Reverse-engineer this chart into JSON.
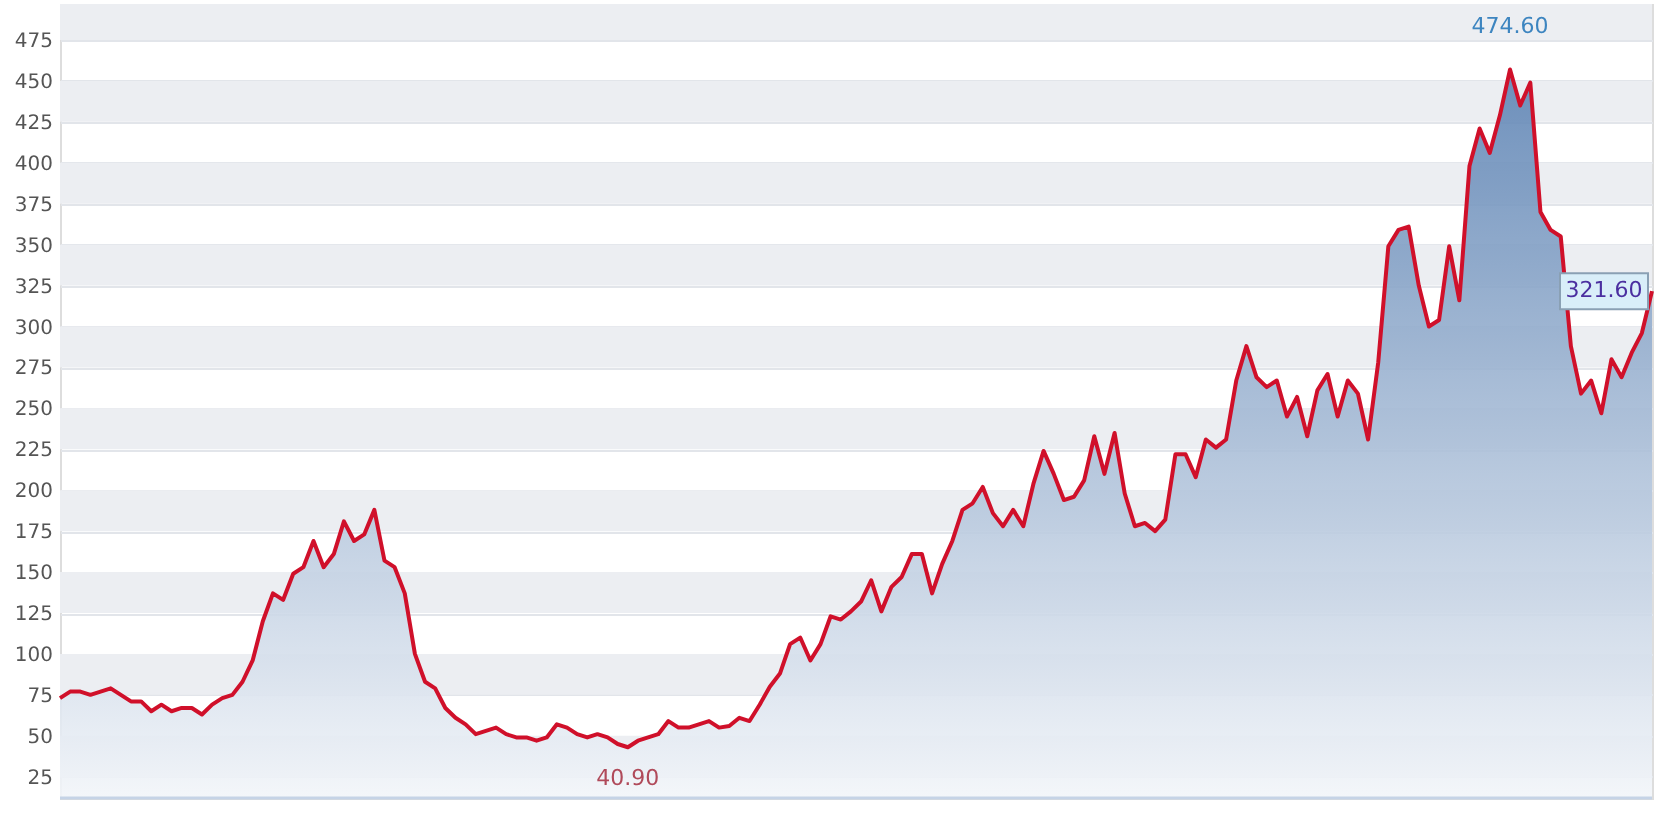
{
  "chart_data": {
    "type": "area",
    "categories": [
      null,
      null,
      null,
      null,
      null,
      null,
      null,
      null,
      null,
      null,
      null,
      null,
      null,
      null,
      null,
      null,
      null,
      null,
      null,
      null,
      null,
      null,
      null,
      null,
      null,
      null,
      null,
      null,
      null,
      null,
      null,
      null,
      null,
      null,
      null,
      null,
      null,
      null,
      null,
      null,
      null,
      null,
      null,
      null,
      null,
      null,
      null,
      null,
      null,
      null,
      null,
      null,
      null,
      null,
      null,
      null,
      null,
      null,
      null,
      null,
      null,
      null,
      null,
      null,
      null,
      null,
      null,
      null,
      null,
      null,
      null,
      null,
      null,
      null,
      null,
      null,
      null,
      null,
      null,
      null,
      null,
      null,
      null,
      null,
      null,
      null,
      null,
      null,
      null,
      null,
      null,
      null,
      null,
      null,
      null,
      null,
      null,
      null,
      null,
      null,
      null,
      null,
      null,
      null,
      null,
      null,
      null,
      null,
      null,
      null,
      null,
      null,
      null,
      null,
      null,
      null,
      null,
      null,
      null,
      null,
      null,
      null,
      null,
      null,
      null,
      null,
      null,
      null,
      null,
      null,
      null,
      null,
      null,
      null,
      null,
      null,
      null,
      null,
      null,
      null,
      null,
      null,
      null,
      null,
      null,
      null,
      null,
      null,
      null,
      null,
      null,
      null,
      null,
      null,
      null,
      null,
      null,
      null
    ],
    "series": [
      {
        "color": "#d0102a",
        "values": [
          73,
          77,
          77,
          75,
          77,
          79,
          75,
          71,
          71,
          65,
          69,
          65,
          67,
          67,
          63,
          69,
          73,
          75,
          83,
          96,
          120,
          137,
          133,
          149,
          153,
          169,
          153,
          161,
          181,
          169,
          173,
          188,
          157,
          153,
          137,
          100,
          83,
          79,
          67,
          61,
          57,
          51,
          53,
          55,
          51,
          49,
          49,
          47,
          49,
          57,
          55,
          51,
          49,
          51,
          49,
          45,
          43,
          47,
          49,
          51,
          59,
          55,
          55,
          57,
          59,
          55,
          56,
          61,
          59,
          69,
          80,
          88,
          106,
          110,
          96,
          106,
          123,
          121,
          126,
          132,
          145,
          126,
          141,
          147,
          161,
          161,
          137,
          155,
          169,
          188,
          192,
          202,
          186,
          178,
          188,
          178,
          204,
          224,
          210,
          194,
          196,
          206,
          233,
          210,
          235,
          198,
          178,
          180,
          175,
          182,
          222,
          222,
          208,
          231,
          226,
          231,
          267,
          288,
          269,
          263,
          267,
          245,
          257,
          233,
          261,
          271,
          245,
          267,
          259,
          231,
          278,
          349,
          359,
          361,
          325,
          300,
          304,
          349,
          316,
          398,
          421,
          406,
          429,
          457,
          435,
          449,
          370,
          359,
          355,
          288,
          259,
          267,
          247,
          280,
          269,
          284,
          296,
          321.6
        ]
      }
    ],
    "ylim": [
      12,
      497
    ],
    "yticks": [
      25,
      50,
      75,
      100,
      125,
      150,
      175,
      200,
      225,
      250,
      275,
      300,
      325,
      350,
      375,
      400,
      425,
      450,
      475
    ],
    "grid": "y",
    "tick_labels": "y",
    "annotations": [
      "474.60",
      "40.90",
      "321.60"
    ]
  }
}
